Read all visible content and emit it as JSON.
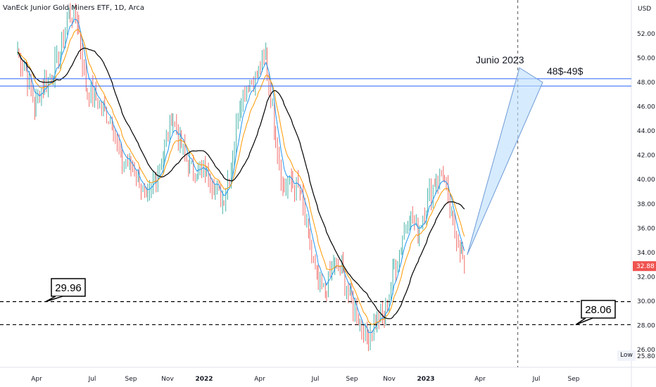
{
  "header": {
    "title": "VanEck Junior Gold Miners ETF, 1D, Arca"
  },
  "colors": {
    "up": "#26a69a",
    "down": "#ef5350",
    "ema_fast": "#2196f3",
    "ema_mid": "#ff9800",
    "sma_slow": "#000000",
    "hline": "#2962ff",
    "fan_fill": "#bbdefb",
    "price_badge": "#ef5350"
  },
  "chart_data": {
    "type": "candlestick",
    "currency_label": "USD",
    "y_range": [
      25.8,
      54.2
    ],
    "y_ticks": [
      "52.00",
      "50.00",
      "48.00",
      "46.00",
      "44.00",
      "42.00",
      "40.00",
      "38.00",
      "36.00",
      "34.00",
      "32.00",
      "30.00",
      "28.00",
      "26.00"
    ],
    "x_ticks": [
      "Apr",
      "Jul",
      "Sep",
      "Nov",
      "2022",
      "Apr",
      "Jul",
      "Sep",
      "Nov",
      "2023",
      "Apr",
      "Jul",
      "Sep"
    ],
    "last_price": "32.88",
    "low_label": "Low",
    "low_value": "25.80",
    "price_path": [
      [
        "2021-03-01",
        50.5
      ],
      [
        "2021-03-15",
        49.0
      ],
      [
        "2021-03-29",
        46.0
      ],
      [
        "2021-04-12",
        47.8
      ],
      [
        "2021-04-26",
        48.6
      ],
      [
        "2021-05-10",
        50.5
      ],
      [
        "2021-05-24",
        53.8
      ],
      [
        "2021-06-07",
        53.2
      ],
      [
        "2021-06-21",
        47.5
      ],
      [
        "2021-07-05",
        46.8
      ],
      [
        "2021-07-19",
        45.6
      ],
      [
        "2021-08-02",
        44.8
      ],
      [
        "2021-08-16",
        41.5
      ],
      [
        "2021-08-30",
        41.2
      ],
      [
        "2021-09-13",
        40.4
      ],
      [
        "2021-09-27",
        37.8
      ],
      [
        "2021-10-11",
        40.2
      ],
      [
        "2021-10-25",
        41.8
      ],
      [
        "2021-11-08",
        45.2
      ],
      [
        "2021-11-22",
        43.2
      ],
      [
        "2021-12-06",
        41.1
      ],
      [
        "2021-12-20",
        40.6
      ],
      [
        "2022-01-03",
        40.8
      ],
      [
        "2022-01-17",
        39.7
      ],
      [
        "2022-01-31",
        38.3
      ],
      [
        "2022-02-14",
        41.0
      ],
      [
        "2022-02-28",
        46.5
      ],
      [
        "2022-03-14",
        48.0
      ],
      [
        "2022-03-28",
        48.5
      ],
      [
        "2022-04-11",
        50.2
      ],
      [
        "2022-04-25",
        44.5
      ],
      [
        "2022-05-09",
        39.3
      ],
      [
        "2022-05-23",
        39.8
      ],
      [
        "2022-06-06",
        39.0
      ],
      [
        "2022-06-20",
        35.2
      ],
      [
        "2022-07-04",
        31.5
      ],
      [
        "2022-07-18",
        30.7
      ],
      [
        "2022-08-01",
        33.2
      ],
      [
        "2022-08-15",
        32.6
      ],
      [
        "2022-08-29",
        30.1
      ],
      [
        "2022-09-12",
        28.5
      ],
      [
        "2022-09-26",
        27.0
      ],
      [
        "2022-10-10",
        28.6
      ],
      [
        "2022-10-24",
        28.7
      ],
      [
        "2022-11-07",
        32.0
      ],
      [
        "2022-11-21",
        34.8
      ],
      [
        "2022-12-05",
        37.3
      ],
      [
        "2022-12-19",
        35.7
      ],
      [
        "2023-01-02",
        37.9
      ],
      [
        "2023-01-16",
        39.8
      ],
      [
        "2023-01-30",
        40.5
      ],
      [
        "2023-02-13",
        36.6
      ],
      [
        "2023-02-27",
        34.5
      ],
      [
        "2023-03-06",
        32.88
      ]
    ],
    "horizontal_levels": [
      {
        "value": 48.3,
        "style": "solid"
      },
      {
        "value": 47.7,
        "style": "solid"
      },
      {
        "value": 29.96,
        "style": "dashed",
        "label": "29.96"
      },
      {
        "value": 28.06,
        "style": "dashed",
        "label": "28.06"
      }
    ],
    "vertical_marker": "2023-06-01",
    "projection": {
      "label_date": "Junio 2023",
      "label_target": "48$-49$"
    }
  }
}
